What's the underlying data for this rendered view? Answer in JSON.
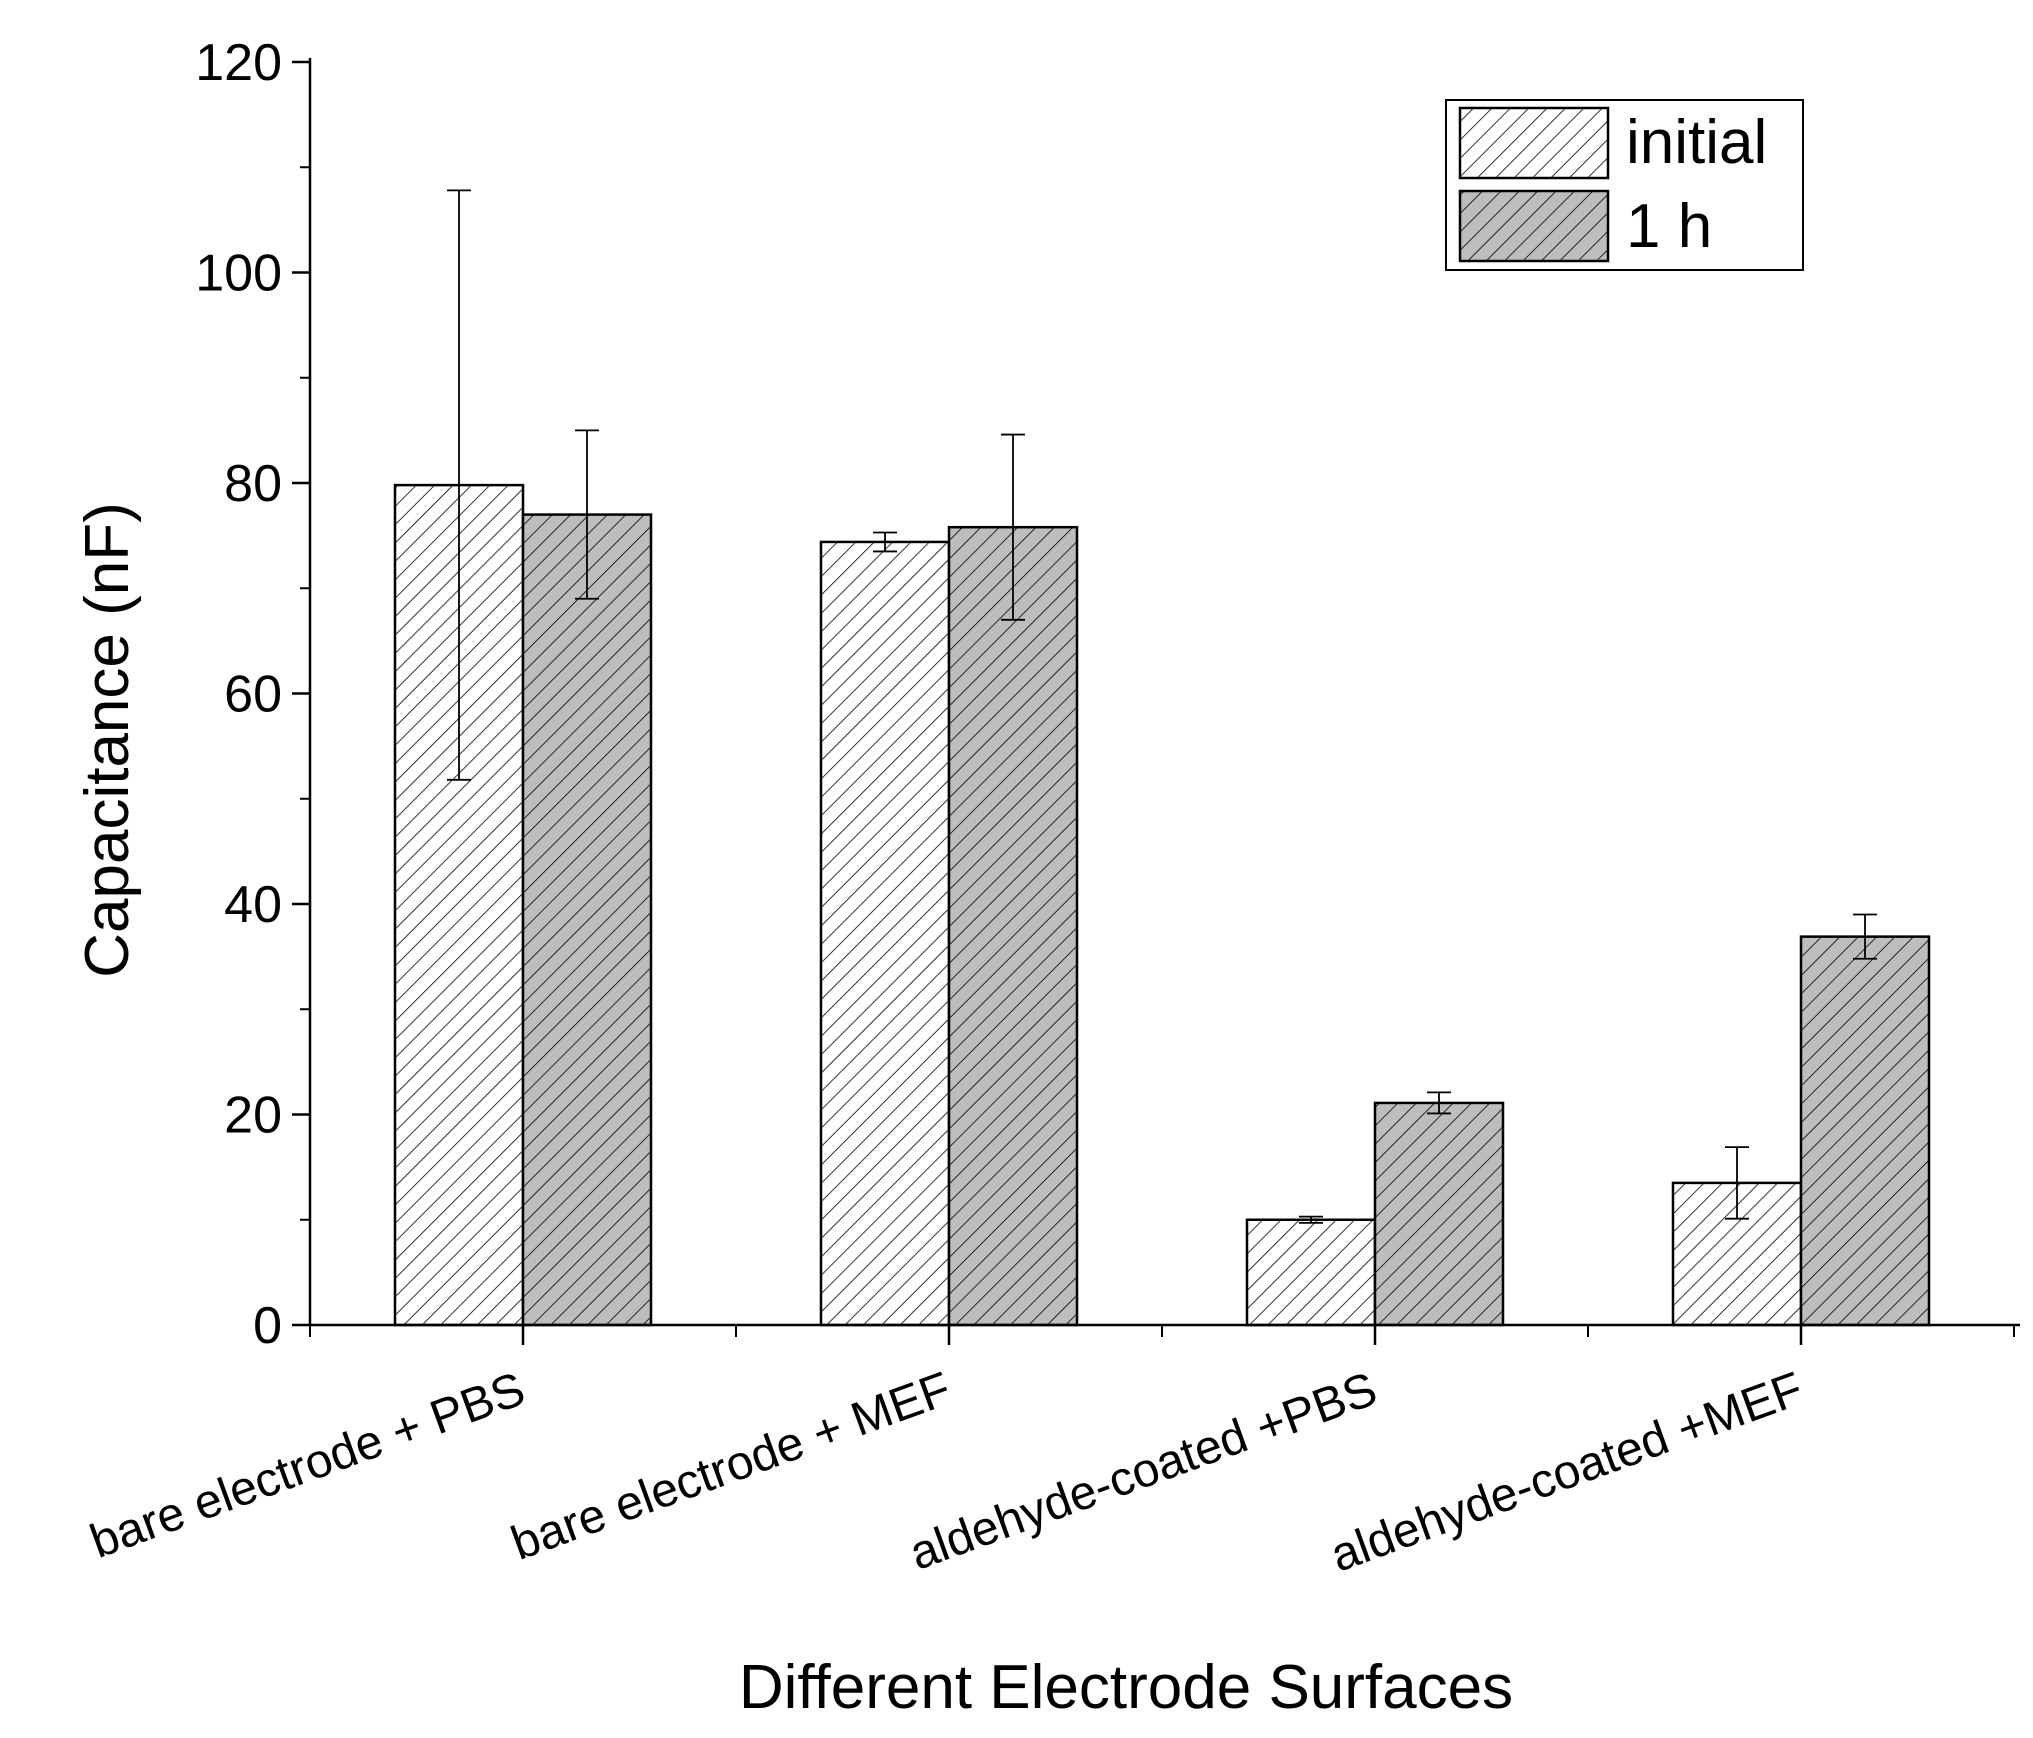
{
  "chart_data": {
    "type": "bar",
    "title": "",
    "xlabel": "Different Electrode Surfaces",
    "ylabel": "Capacitance (nF)",
    "ylim": [
      0,
      120
    ],
    "yticks": [
      0,
      20,
      40,
      60,
      80,
      100,
      120
    ],
    "ytick_labels": [
      "0",
      "20",
      "40",
      "60",
      "80",
      "100",
      "120"
    ],
    "grid": false,
    "legend_position": "top-right",
    "categories": [
      "bare electrode + PBS",
      "bare electrode + MEF",
      "aldehyde-coated +PBS",
      "aldehyde-coated +MEF"
    ],
    "series": [
      {
        "name": "initial",
        "fill": "#ffffff",
        "pattern": "hatch",
        "values": [
          79.8,
          74.4,
          10.0,
          13.5
        ],
        "errors": [
          28.0,
          0.9,
          0.3,
          3.4
        ]
      },
      {
        "name": "1 h",
        "fill": "#bdbdbd",
        "pattern": "hatch",
        "values": [
          77.0,
          75.8,
          21.1,
          36.9
        ],
        "errors": [
          8.0,
          8.8,
          1.0,
          2.1
        ]
      }
    ]
  }
}
